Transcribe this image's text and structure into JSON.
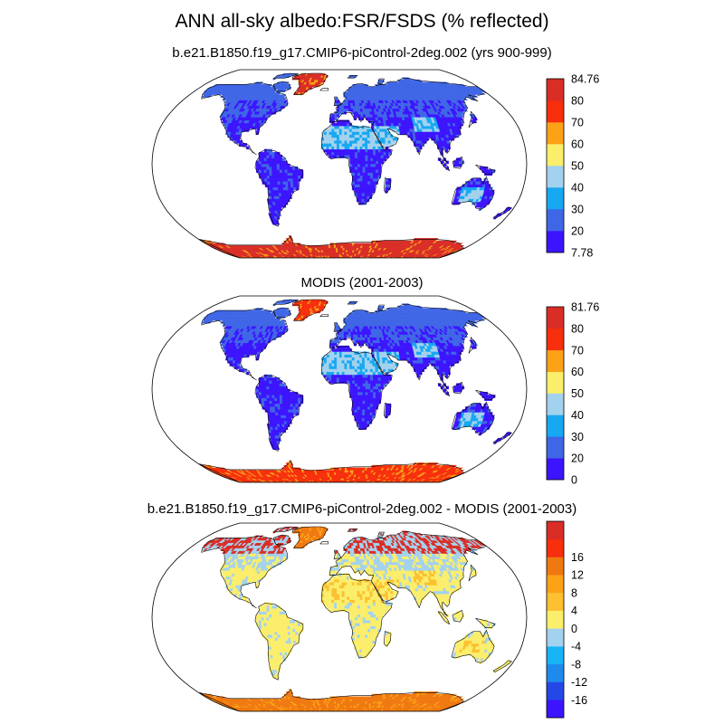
{
  "title": "ANN all-sky albedo:FSR/FSDS (% reflected)",
  "panels": [
    {
      "subtitle": "b.e21.B1850.f19_g17.CMIP6-piControl-2deg.002 (yrs 900-999)",
      "colorbar": {
        "colors": [
          "#3c14ff",
          "#3f66e6",
          "#17a8f2",
          "#a3d2ee",
          "#fbee6b",
          "#fca217",
          "#f72f0c",
          "#d92d26"
        ],
        "labels": [
          "7.78",
          "20",
          "30",
          "40",
          "50",
          "60",
          "70",
          "80",
          "84.76"
        ]
      },
      "palette": {
        "ocean": "#ffffff",
        "land": "#3c14ff",
        "land_alt": "#3f66e6",
        "desert": "#a3d2ee",
        "desert_alt": "#17a8f2",
        "ice": "#d92d26",
        "ice_alt": "#fca217",
        "arctic": "#3f66e6"
      }
    },
    {
      "subtitle": "MODIS (2001-2003)",
      "colorbar": {
        "colors": [
          "#3c14ff",
          "#3f66e6",
          "#17a8f2",
          "#a3d2ee",
          "#fbee6b",
          "#fca217",
          "#f72f0c",
          "#d92d26"
        ],
        "labels": [
          "0",
          "20",
          "30",
          "40",
          "50",
          "60",
          "70",
          "80",
          "81.76"
        ]
      },
      "palette": {
        "ocean": "#ffffff",
        "land": "#3c14ff",
        "land_alt": "#3f66e6",
        "desert": "#a3d2ee",
        "desert_alt": "#17a8f2",
        "ice": "#f72f0c",
        "ice_alt": "#fca217",
        "arctic": "#3f66e6"
      }
    },
    {
      "subtitle": "b.e21.B1850.f19_g17.CMIP6-piControl-2deg.002 - MODIS (2001-2003)",
      "colorbar": {
        "colors": [
          "#3c14ff",
          "#2448e6",
          "#1f8aee",
          "#17b4f5",
          "#a3d2ee",
          "#fbee6b",
          "#fcc030",
          "#fca217",
          "#f07810",
          "#f72f0c",
          "#d92d26"
        ],
        "labels": [
          "-16",
          "-12",
          "-8",
          "-4",
          "0",
          "4",
          "8",
          "12",
          "16"
        ]
      },
      "palette": {
        "ocean": "#ffffff",
        "land": "#fbee6b",
        "land_alt": "#a3d2ee",
        "desert": "#fbee6b",
        "desert_alt": "#fcc030",
        "ice": "#f07810",
        "ice_alt": "#fca217",
        "arctic": "#d92d26"
      }
    }
  ]
}
